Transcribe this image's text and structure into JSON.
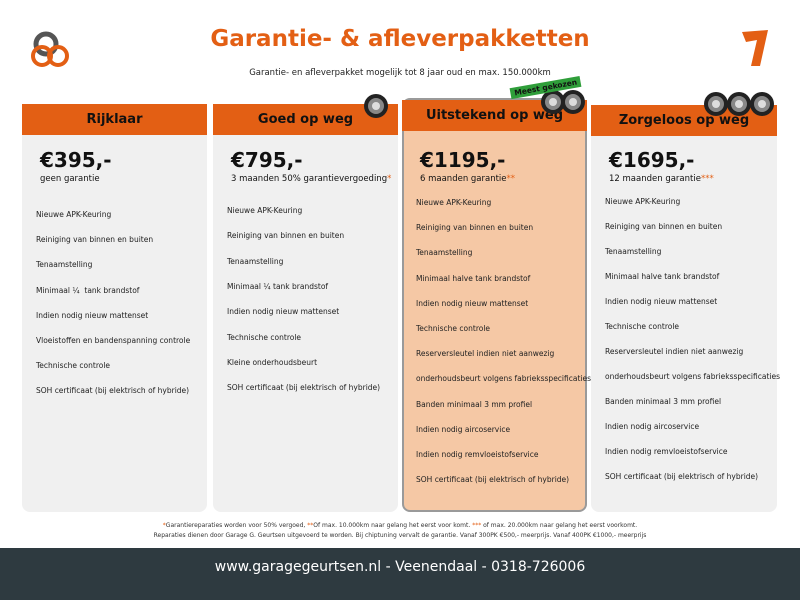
{
  "header": {
    "title": "Garantie- & afleverpakketten",
    "subtitle": "Garantie- en afleverpakket mogelijk tot 8 jaar oud en max. 150.000km"
  },
  "cards": [
    {
      "name": "Rijklaar",
      "price": "€395,-",
      "guarantee": "geen garantie",
      "features": [
        "Nieuwe APK-Keuring",
        "Reiniging van binnen en buiten",
        "Tenaamstelling",
        "Minimaal ¼  tank brandstof",
        "Indien nodig nieuw mattenset",
        "Vloeistoffen en bandenspanning controle",
        "Technische controle",
        "SOH certificaat (bij elektrisch of hybride)"
      ]
    },
    {
      "name": "Goed op weg",
      "price": "€795,-",
      "guarantee": "3 maanden 50% garantievergoeding",
      "guarantee_mark": "*",
      "features": [
        "Nieuwe APK-Keuring",
        "Reiniging van binnen en buiten",
        "Tenaamstelling",
        "Minimaal ¼ tank brandstof",
        "Indien nodig nieuw mattenset",
        "Technische controle",
        "Kleine onderhoudsbeurt",
        "SOH certificaat (bij elektrisch of hybride)"
      ]
    },
    {
      "name": "Uitstekend op weg",
      "badge": "Meest gekozen",
      "price": "€1195,-",
      "guarantee": "6 maanden garantie",
      "guarantee_mark": "**",
      "features": [
        "Nieuwe APK-Keuring",
        "Reiniging van binnen en buiten",
        "Tenaamstelling",
        "Minimaal halve tank brandstof",
        "Indien nodig nieuw mattenset",
        "Technische controle",
        "Reserversleutel indien niet aanwezig",
        "onderhoudsbeurt volgens fabrieksspecificaties",
        "Banden minimaal 3 mm profiel",
        "Indien nodig aircoservice",
        "Indien nodig remvloeistofservice",
        "SOH certificaat (bij elektrisch of hybride)"
      ]
    },
    {
      "name": "Zorgeloos op weg",
      "price": "€1695,-",
      "guarantee": "12 maanden garantie",
      "guarantee_mark": "***",
      "features": [
        "Nieuwe APK-Keuring",
        "Reiniging van binnen en buiten",
        "Tenaamstelling",
        "Minimaal halve tank brandstof",
        "Indien nodig nieuw mattenset",
        "Technische controle",
        "Reserversleutel indien niet aanwezig",
        "onderhoudsbeurt volgens fabrieksspecificaties",
        "Banden minimaal 3 mm profiel",
        "Indien nodig aircoservice",
        "Indien nodig remvloeistofservice",
        "SOH certificaat (bij elektrisch of hybride)"
      ]
    }
  ],
  "footnotes": {
    "line1": [
      "*",
      "Garantiereparaties worden voor 50% vergoed, ",
      "**",
      "Of max. 10.000km naar gelang het eerst voor komt. ",
      "***",
      " of max. 20.000km naar gelang het eerst voorkomt."
    ],
    "line2": "Reparaties dienen door Garage G. Geurtsen uitgevoerd te worden. Bij chiptuning vervalt de garantie. Vanaf 300PK €500,- meerprijs. Vanaf 400PK €1000,- meerprijs"
  },
  "footer": {
    "contact": "www.garagegeurtsen.nl - Veenendaal - 0318-726006"
  }
}
